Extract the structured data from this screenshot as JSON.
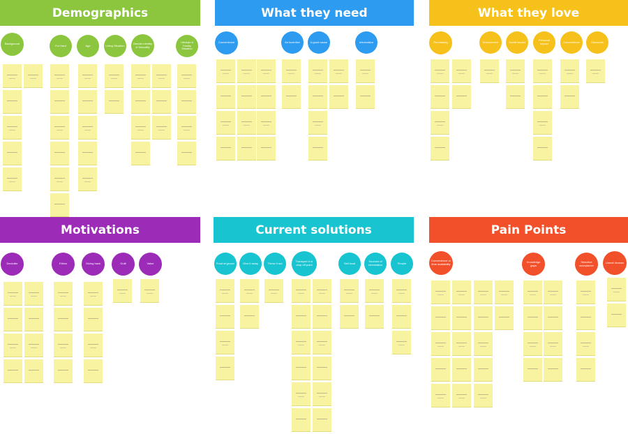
{
  "colors": {
    "green": "#8cc63f",
    "blue": "#2d9bf0",
    "yellow": "#f7c11c",
    "purple": "#9c2bb8",
    "teal": "#19c4d1",
    "red": "#f2502a",
    "sticky": "#f7f3a0"
  },
  "sections": [
    {
      "id": "demographics",
      "title": "Demographics",
      "color": "#8cc63f",
      "clusters": [
        "Background",
        "For Hard",
        "Age",
        "Living Situation",
        "Gender Identity & Sexuality",
        "Lifestyle & Family Situation"
      ]
    },
    {
      "id": "what-they-need",
      "title": "What they need",
      "color": "#2d9bf0",
      "clusters": [
        "Convenience",
        "An incentive",
        "A good cause",
        "Information"
      ]
    },
    {
      "id": "what-they-love",
      "title": "What they love",
      "color": "#f7c11c",
      "clusters": [
        "Purchasing",
        "Environment",
        "Social impact",
        "Personal impact",
        "Convenience",
        "Discounts"
      ]
    },
    {
      "id": "motivations",
      "title": "Motivations",
      "color": "#9c2bb8",
      "clusters": [
        "Declutter",
        "Ethics",
        "Giving back",
        "Guilt",
        "Value"
      ]
    },
    {
      "id": "current-solutions",
      "title": "Current solutions",
      "color": "#19c4d1",
      "clusters": [
        "Food at grocer",
        "Give it away",
        "Throw it out",
        "Transport it or drop off point",
        "Sell local",
        "Sources of information",
        "People"
      ]
    },
    {
      "id": "pain-points",
      "title": "Pain Points",
      "color": "#f2502a",
      "clusters": [
        "Convenience or time availability",
        "Knowledge gaps",
        "Selective acceptance",
        "Unmet dreams"
      ]
    }
  ]
}
